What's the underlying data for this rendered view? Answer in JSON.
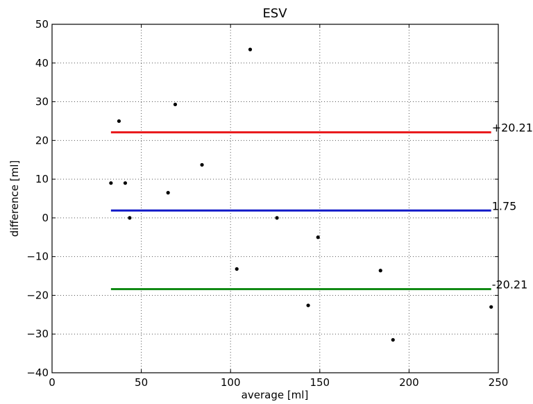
{
  "chart_data": {
    "type": "scatter",
    "title": "ESV",
    "xlabel": "average [ml]",
    "ylabel": "difference [ml]",
    "xlim": [
      0,
      250
    ],
    "ylim": [
      -40,
      50
    ],
    "xticks": [
      0,
      50,
      100,
      150,
      200,
      250
    ],
    "yticks": [
      -40,
      -30,
      -20,
      -10,
      0,
      10,
      20,
      30,
      40,
      50
    ],
    "grid": true,
    "points": [
      {
        "x": 33,
        "y": 9
      },
      {
        "x": 37.5,
        "y": 25
      },
      {
        "x": 41,
        "y": 9
      },
      {
        "x": 43.5,
        "y": 0
      },
      {
        "x": 65,
        "y": 6.5
      },
      {
        "x": 69,
        "y": 29.3
      },
      {
        "x": 84,
        "y": 13.7
      },
      {
        "x": 103.5,
        "y": -13.2
      },
      {
        "x": 111,
        "y": 43.5
      },
      {
        "x": 126,
        "y": 0
      },
      {
        "x": 143.5,
        "y": -22.6
      },
      {
        "x": 149,
        "y": -5
      },
      {
        "x": 184,
        "y": -13.6
      },
      {
        "x": 191,
        "y": -31.5
      },
      {
        "x": 246,
        "y": -23
      }
    ],
    "lines": [
      {
        "label": "+20.21",
        "y": 22.1,
        "x_start": 33,
        "x_end": 246,
        "color": "#e8171a"
      },
      {
        "label": "1.75",
        "y": 1.9,
        "x_start": 33,
        "x_end": 246,
        "color": "#1119c8"
      },
      {
        "label": "-20.21",
        "y": -18.4,
        "x_start": 33,
        "x_end": 246,
        "color": "#128a15"
      }
    ]
  }
}
